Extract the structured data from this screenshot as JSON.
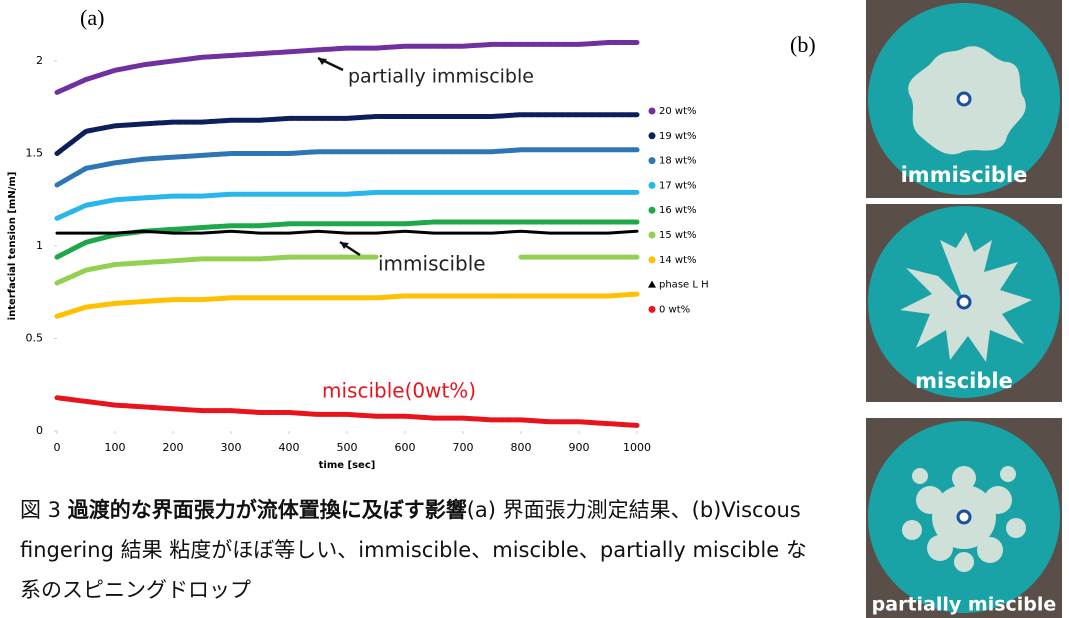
{
  "chart_data": {
    "type": "line",
    "panel_label": "(a)",
    "x_label": "time [sec]",
    "y_label": "interfacial tension [mN/m]",
    "x": [
      0,
      50,
      100,
      150,
      200,
      250,
      300,
      350,
      400,
      450,
      500,
      550,
      600,
      650,
      700,
      750,
      800,
      850,
      900,
      950,
      1000
    ],
    "series": [
      {
        "name": "20 wt%",
        "color": "#7030a0",
        "marker": "circle",
        "values": [
          1.83,
          1.9,
          1.95,
          1.98,
          2.0,
          2.02,
          2.03,
          2.04,
          2.05,
          2.06,
          2.07,
          2.07,
          2.08,
          2.08,
          2.08,
          2.09,
          2.09,
          2.09,
          2.09,
          2.1,
          2.1
        ]
      },
      {
        "name": "19 wt%",
        "color": "#0b1f5c",
        "marker": "circle",
        "values": [
          1.5,
          1.62,
          1.65,
          1.66,
          1.67,
          1.67,
          1.68,
          1.68,
          1.69,
          1.69,
          1.69,
          1.7,
          1.7,
          1.7,
          1.7,
          1.7,
          1.71,
          1.71,
          1.71,
          1.71,
          1.71
        ]
      },
      {
        "name": "18 wt%",
        "color": "#2e75b6",
        "marker": "circle",
        "values": [
          1.33,
          1.42,
          1.45,
          1.47,
          1.48,
          1.49,
          1.5,
          1.5,
          1.5,
          1.51,
          1.51,
          1.51,
          1.51,
          1.51,
          1.51,
          1.51,
          1.52,
          1.52,
          1.52,
          1.52,
          1.52
        ]
      },
      {
        "name": "17 wt%",
        "color": "#29b6ec",
        "marker": "circle",
        "values": [
          1.15,
          1.22,
          1.25,
          1.26,
          1.27,
          1.27,
          1.28,
          1.28,
          1.28,
          1.28,
          1.28,
          1.29,
          1.29,
          1.29,
          1.29,
          1.29,
          1.29,
          1.29,
          1.29,
          1.29,
          1.29
        ]
      },
      {
        "name": "16 wt%",
        "color": "#1fa84a",
        "marker": "circle",
        "values": [
          0.94,
          1.02,
          1.06,
          1.08,
          1.09,
          1.1,
          1.11,
          1.11,
          1.12,
          1.12,
          1.12,
          1.12,
          1.12,
          1.13,
          1.13,
          1.13,
          1.13,
          1.13,
          1.13,
          1.13,
          1.13
        ]
      },
      {
        "name": "15 wt%",
        "color": "#92d050",
        "marker": "circle",
        "values": [
          0.8,
          0.87,
          0.9,
          0.91,
          0.92,
          0.93,
          0.93,
          0.93,
          0.94,
          0.94,
          0.94,
          0.94,
          null,
          null,
          null,
          null,
          0.94,
          0.94,
          0.94,
          0.94,
          0.94
        ]
      },
      {
        "name": "14 wt%",
        "color": "#ffc000",
        "marker": "circle",
        "values": [
          0.62,
          0.67,
          0.69,
          0.7,
          0.71,
          0.71,
          0.72,
          0.72,
          0.72,
          0.72,
          0.72,
          0.72,
          0.73,
          0.73,
          0.73,
          0.73,
          0.73,
          0.73,
          0.73,
          0.73,
          0.74
        ]
      },
      {
        "name": "phase L H",
        "color": "#000000",
        "marker": "triangle",
        "values": [
          1.07,
          1.07,
          1.07,
          1.08,
          1.07,
          1.07,
          1.08,
          1.07,
          1.07,
          1.08,
          1.07,
          1.07,
          1.08,
          1.07,
          1.07,
          1.07,
          1.08,
          1.07,
          1.07,
          1.07,
          1.08
        ]
      },
      {
        "name": "0 wt%",
        "color": "#e8141b",
        "marker": "circle",
        "values": [
          0.18,
          0.16,
          0.14,
          0.13,
          0.12,
          0.11,
          0.11,
          0.1,
          0.1,
          0.09,
          0.09,
          0.08,
          0.08,
          0.07,
          0.07,
          0.06,
          0.06,
          0.05,
          0.05,
          0.04,
          0.03
        ]
      }
    ],
    "annotations": [
      {
        "text": "partially immiscible",
        "color": "#222222"
      },
      {
        "text": "immiscible",
        "color": "#222222"
      },
      {
        "text": "miscible(0wt%)",
        "color": "#e8141b"
      }
    ],
    "xlim": [
      0,
      1000
    ],
    "xticks": [
      0,
      100,
      200,
      300,
      400,
      500,
      600,
      700,
      800,
      900,
      1000
    ],
    "ylim": [
      0,
      2.2
    ],
    "yticks": [
      0,
      0.5,
      1,
      1.5,
      2
    ],
    "grid": false,
    "legend": "right"
  },
  "panel_b": {
    "label": "(b)",
    "images": [
      {
        "label": "immiscible"
      },
      {
        "label": "miscible"
      },
      {
        "label": "partially miscible"
      }
    ]
  },
  "caption": {
    "figure": "図 3",
    "title": "過渡的な界面張力が流体置換に及ぼす影響",
    "text": "(a) 界面張力測定結果、(b)Viscous fingering 結果 粘度がほぼ等しい、immiscible、miscible、partially miscible な系のスピニングドロップ"
  }
}
